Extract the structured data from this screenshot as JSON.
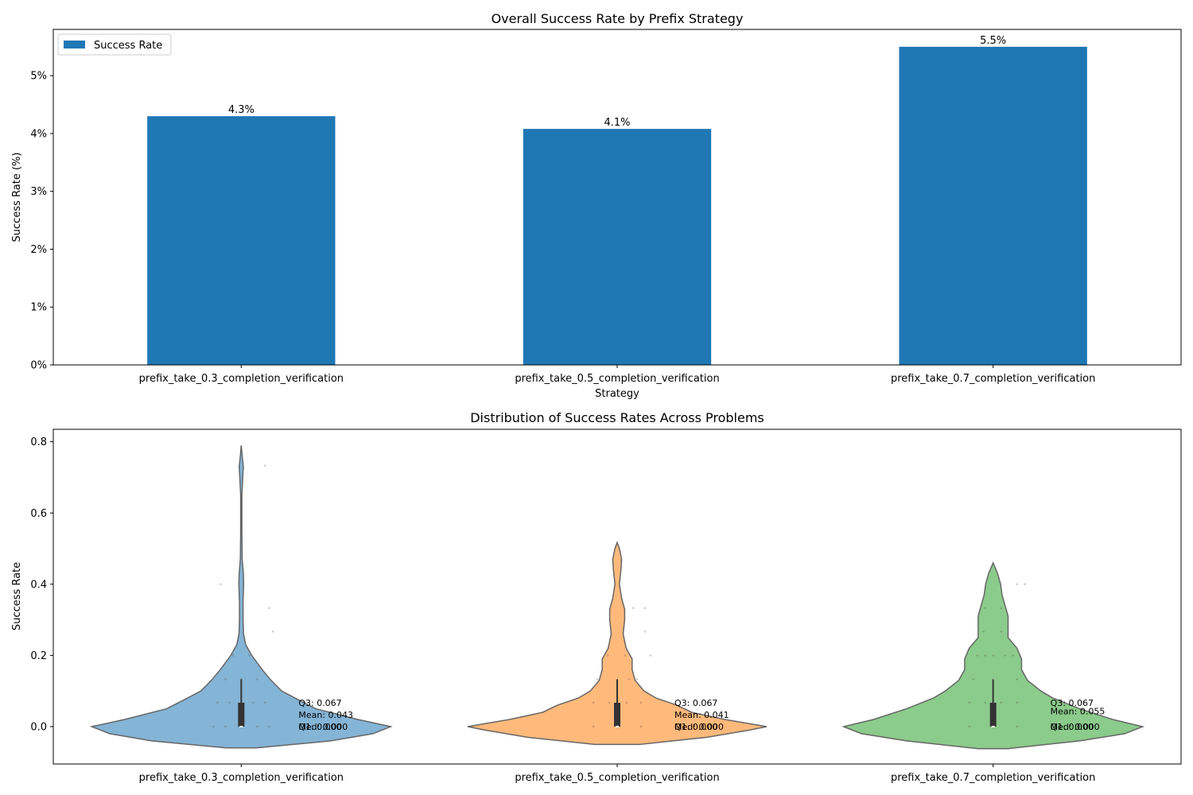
{
  "chart_data": [
    {
      "type": "bar",
      "title": "Overall Success Rate by Prefix Strategy",
      "xlabel": "Strategy",
      "ylabel": "Success Rate (%)",
      "categories": [
        "prefix_take_0.3_completion_verification",
        "prefix_take_0.5_completion_verification",
        "prefix_take_0.7_completion_verification"
      ],
      "series": [
        {
          "name": "Success Rate",
          "values": [
            4.3,
            4.08,
            5.5
          ]
        }
      ],
      "data_labels": [
        "4.3%",
        "4.1%",
        "5.5%"
      ],
      "ylim": [
        0,
        5.8
      ],
      "yticks": [
        0,
        1,
        2,
        3,
        4,
        5
      ],
      "ytick_labels": [
        "0%",
        "1%",
        "2%",
        "3%",
        "4%",
        "5%"
      ],
      "legend": "top-left",
      "color": "#1f77b4"
    },
    {
      "type": "violin",
      "title": "Distribution of Success Rates Across Problems",
      "xlabel": "",
      "ylabel": "Success Rate",
      "categories": [
        "prefix_take_0.3_completion_verification",
        "prefix_take_0.5_completion_verification",
        "prefix_take_0.7_completion_verification"
      ],
      "ylim": [
        -0.105,
        0.835
      ],
      "yticks": [
        0.0,
        0.2,
        0.4,
        0.6,
        0.8
      ],
      "ytick_labels": [
        "0.0",
        "0.2",
        "0.4",
        "0.6",
        "0.8"
      ],
      "colors": [
        "#1f77b4",
        "#ff7f0e",
        "#2ca02c"
      ],
      "violins": [
        {
          "min": -0.06,
          "max": 0.79,
          "profile": [
            [
              -0.06,
              0.1
            ],
            [
              -0.04,
              0.6
            ],
            [
              -0.02,
              0.88
            ],
            [
              0.0,
              1.0
            ],
            [
              0.02,
              0.78
            ],
            [
              0.05,
              0.5
            ],
            [
              0.08,
              0.36
            ],
            [
              0.1,
              0.27
            ],
            [
              0.13,
              0.2
            ],
            [
              0.16,
              0.14
            ],
            [
              0.2,
              0.07
            ],
            [
              0.23,
              0.03
            ],
            [
              0.26,
              0.015
            ],
            [
              0.3,
              0.012
            ],
            [
              0.35,
              0.012
            ],
            [
              0.4,
              0.016
            ],
            [
              0.43,
              0.014
            ],
            [
              0.47,
              0.006
            ],
            [
              0.55,
              0.004
            ],
            [
              0.65,
              0.004
            ],
            [
              0.7,
              0.01
            ],
            [
              0.73,
              0.014
            ],
            [
              0.76,
              0.006
            ],
            [
              0.79,
              0.0
            ]
          ],
          "q1": 0.0,
          "median": 0.0,
          "q3": 0.067,
          "whisker_high": 0.133,
          "points": [
            [
              -0.26,
              0.4
            ],
            [
              -0.1,
              0.2
            ],
            [
              0.1,
              0.2
            ],
            [
              0.35,
              0.333
            ],
            [
              0.4,
              0.267
            ],
            [
              0.3,
              0.733
            ],
            [
              -0.2,
              0.133
            ],
            [
              0.2,
              0.133
            ],
            [
              0.0,
              0.133
            ],
            [
              -0.3,
              0.067
            ],
            [
              -0.15,
              0.067
            ],
            [
              0.15,
              0.067
            ],
            [
              0.3,
              0.067
            ],
            [
              -0.35,
              0.0
            ],
            [
              -0.2,
              0.0
            ],
            [
              0.2,
              0.0
            ],
            [
              0.35,
              0.0
            ]
          ],
          "labels": {
            "q3": "Q3: 0.067",
            "mean": "Mean: 0.043",
            "q1": "Q1: 0.000",
            "median": "Med: 0.000"
          }
        },
        {
          "min": -0.05,
          "max": 0.517,
          "profile": [
            [
              -0.05,
              0.15
            ],
            [
              -0.03,
              0.6
            ],
            [
              -0.01,
              0.88
            ],
            [
              0.0,
              1.0
            ],
            [
              0.02,
              0.72
            ],
            [
              0.04,
              0.5
            ],
            [
              0.06,
              0.4
            ],
            [
              0.08,
              0.26
            ],
            [
              0.1,
              0.18
            ],
            [
              0.13,
              0.12
            ],
            [
              0.16,
              0.1
            ],
            [
              0.19,
              0.1
            ],
            [
              0.22,
              0.06
            ],
            [
              0.26,
              0.04
            ],
            [
              0.3,
              0.05
            ],
            [
              0.33,
              0.05
            ],
            [
              0.36,
              0.03
            ],
            [
              0.4,
              0.015
            ],
            [
              0.44,
              0.025
            ],
            [
              0.47,
              0.03
            ],
            [
              0.5,
              0.015
            ],
            [
              0.517,
              0.0
            ]
          ],
          "q1": 0.0,
          "median": 0.0,
          "q3": 0.067,
          "whisker_high": 0.133,
          "points": [
            [
              -0.12,
              0.2
            ],
            [
              0.1,
              0.2
            ],
            [
              0.42,
              0.2
            ],
            [
              0.2,
              0.333
            ],
            [
              0.35,
              0.333
            ],
            [
              0.35,
              0.267
            ],
            [
              0.05,
              0.467
            ],
            [
              -0.25,
              0.133
            ],
            [
              0.15,
              0.133
            ],
            [
              0.25,
              0.133
            ],
            [
              -0.3,
              0.067
            ],
            [
              -0.1,
              0.067
            ],
            [
              0.12,
              0.067
            ],
            [
              0.3,
              0.067
            ],
            [
              -0.3,
              0.0
            ],
            [
              0.0,
              0.0
            ],
            [
              0.3,
              0.0
            ]
          ],
          "labels": {
            "q3": "Q3: 0.067",
            "mean": "Mean: 0.041",
            "q1": "Q1: 0.000",
            "median": "Med: 0.000"
          }
        },
        {
          "min": -0.062,
          "max": 0.46,
          "profile": [
            [
              -0.062,
              0.1
            ],
            [
              -0.04,
              0.58
            ],
            [
              -0.02,
              0.88
            ],
            [
              0.0,
              1.0
            ],
            [
              0.02,
              0.8
            ],
            [
              0.05,
              0.58
            ],
            [
              0.08,
              0.4
            ],
            [
              0.1,
              0.32
            ],
            [
              0.13,
              0.23
            ],
            [
              0.16,
              0.19
            ],
            [
              0.19,
              0.19
            ],
            [
              0.22,
              0.16
            ],
            [
              0.25,
              0.1
            ],
            [
              0.28,
              0.1
            ],
            [
              0.31,
              0.1
            ],
            [
              0.34,
              0.08
            ],
            [
              0.37,
              0.06
            ],
            [
              0.4,
              0.05
            ],
            [
              0.43,
              0.03
            ],
            [
              0.46,
              0.0
            ]
          ],
          "q1": 0.0,
          "median": 0.0,
          "q3": 0.067,
          "whisker_high": 0.133,
          "points": [
            [
              -0.2,
              0.2
            ],
            [
              -0.1,
              0.2
            ],
            [
              0.0,
              0.2
            ],
            [
              0.15,
              0.2
            ],
            [
              0.25,
              0.2
            ],
            [
              -0.1,
              0.333
            ],
            [
              0.1,
              0.333
            ],
            [
              0.3,
              0.4
            ],
            [
              0.4,
              0.4
            ],
            [
              -0.12,
              0.267
            ],
            [
              0.1,
              0.267
            ],
            [
              -0.25,
              0.133
            ],
            [
              0.3,
              0.133
            ],
            [
              -0.3,
              0.067
            ],
            [
              -0.1,
              0.067
            ],
            [
              0.1,
              0.067
            ],
            [
              0.3,
              0.067
            ],
            [
              -0.3,
              0.0
            ],
            [
              0.0,
              0.0
            ],
            [
              0.3,
              0.0
            ]
          ],
          "labels": {
            "q3": "Q3: 0.067",
            "mean": "Mean: 0.055",
            "q1": "Q1: 0.000",
            "median": "Med: 0.000"
          }
        }
      ]
    }
  ]
}
